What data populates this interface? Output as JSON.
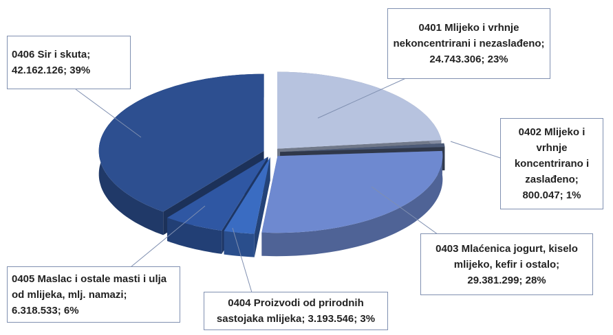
{
  "chart_data": {
    "type": "pie",
    "categories": [
      "0401 Mlijeko i vrhnje nekoncentrirani i nezaslađeno;",
      "0402 Mlijeko i vrhnje koncentrirano i zaslađeno;",
      "0403 Mlaćenica jogurt, kiselo mlijeko, kefir i ostalo;",
      "0404 Proizvodi od prirodnih sastojaka mlijeka;",
      "0405 Maslac i ostale masti i ulja od mlijeka, mlj. namazi;",
      "0406 Sir i skuta;"
    ],
    "values": [
      24743306,
      800047,
      29381299,
      3193546,
      6318533,
      42162126
    ],
    "value_labels": [
      "24.743.306; 23%",
      "800.047; 1%",
      "29.381.299; 28%",
      "3.193.546; 3%",
      "6.318.533; 6%",
      "42.162.126; 39%"
    ],
    "colors": [
      "#b7c3df",
      "#4d5b78",
      "#6e89d0",
      "#3a6cc2",
      "#2f57a3",
      "#2d4f90"
    ]
  }
}
